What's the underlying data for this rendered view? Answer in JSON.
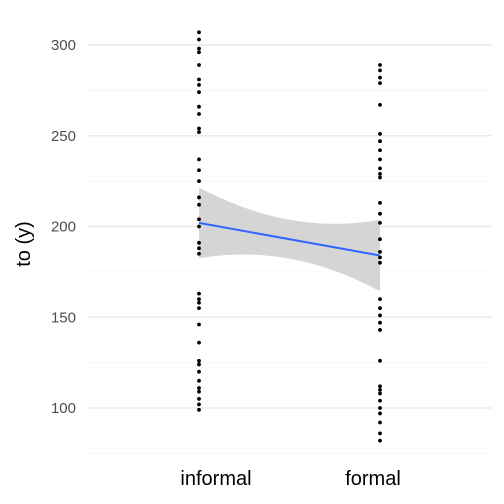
{
  "chart_data": {
    "type": "scatter",
    "title": "",
    "xlabel": "",
    "ylabel": "to (y)",
    "categories": [
      "informal",
      "formal"
    ],
    "ylim": [
      75,
      325
    ],
    "y_ticks": [
      100,
      150,
      200,
      250,
      300
    ],
    "grid": true,
    "legend": "none",
    "series": [
      {
        "category": "informal",
        "values": [
          99,
          102,
          105,
          109,
          111,
          115,
          120,
          124,
          126,
          136,
          146,
          155,
          158,
          160,
          163,
          185,
          188,
          191,
          200,
          204,
          212,
          216,
          225,
          231,
          237,
          252,
          254,
          262,
          266,
          274,
          278,
          281,
          289,
          296,
          298,
          303,
          307
        ]
      },
      {
        "category": "formal",
        "values": [
          82,
          86,
          92,
          97,
          100,
          104,
          108,
          110,
          112,
          126,
          143,
          147,
          151,
          155,
          160,
          180,
          183,
          186,
          193,
          202,
          207,
          213,
          227,
          229,
          232,
          237,
          242,
          247,
          251,
          267,
          279,
          282,
          286,
          289
        ]
      }
    ],
    "trend": {
      "method": "lm",
      "fit": [
        202,
        184
      ],
      "ci_lower": [
        183,
        164
      ],
      "ci_upper": [
        222,
        204
      ]
    },
    "colors": {
      "points": "#000000",
      "line": "#3366ff",
      "ribbon": "#d3d3d3",
      "grid_major": "#ebebeb",
      "grid_minor": "#f5f5f5"
    }
  }
}
